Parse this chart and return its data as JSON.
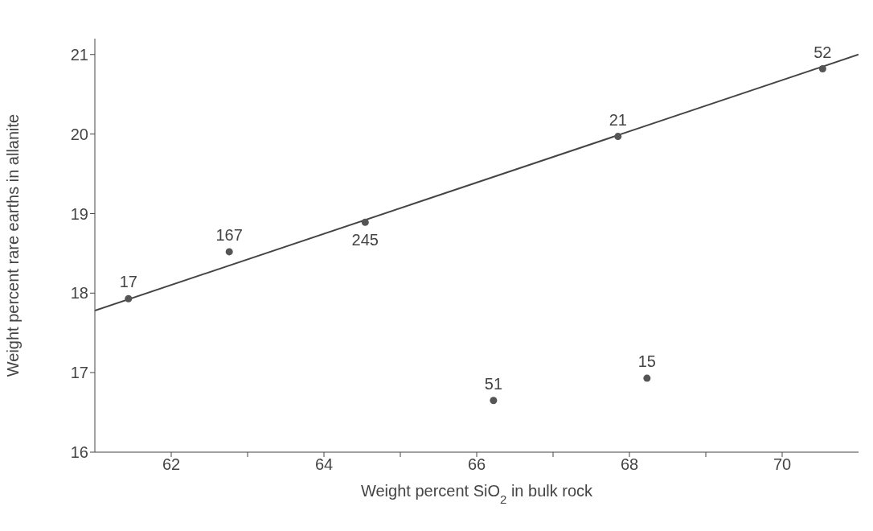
{
  "chart_data": {
    "type": "scatter",
    "xlabel": "Weight percent SiO$_{2}$ in bulk rock",
    "ylabel": "Weight percent rare earths in allanite",
    "xlim": [
      61,
      71
    ],
    "xticks": [
      62,
      {
        "value": 63,
        "label": null
      },
      64,
      {
        "value": 65,
        "label": null
      },
      66,
      {
        "value": 67,
        "label": null
      },
      68,
      {
        "value": 69,
        "label": null
      },
      70
    ],
    "ylim": [
      16,
      21.2
    ],
    "yticks": [
      16,
      17,
      18,
      19,
      20,
      21
    ],
    "grid": false,
    "series": [
      {
        "marker": "circle",
        "color": "#555555",
        "x": [
          61.44,
          62.76,
          64.54,
          67.85,
          70.53,
          66.22,
          68.23
        ],
        "values": [
          17.93,
          18.52,
          18.89,
          19.97,
          20.82,
          16.65,
          16.93
        ]
      },
      {
        "type": "line",
        "color": "#444444",
        "line_style": "solid",
        "x": [
          61,
          71
        ],
        "values": [
          17.78,
          21.0
        ]
      }
    ],
    "annotations": [
      {
        "text": "17",
        "x": 61.44,
        "y": 17.93
      },
      {
        "text": "167",
        "x": 62.76,
        "y": 18.52
      },
      {
        "text": "245",
        "x": 64.54,
        "y": 18.89
      },
      {
        "text": "21",
        "x": 67.85,
        "y": 19.97
      },
      {
        "text": "52",
        "x": 70.53,
        "y": 20.82
      },
      {
        "text": "51",
        "x": 66.22,
        "y": 16.65
      },
      {
        "text": "15",
        "x": 68.23,
        "y": 16.93
      }
    ]
  }
}
